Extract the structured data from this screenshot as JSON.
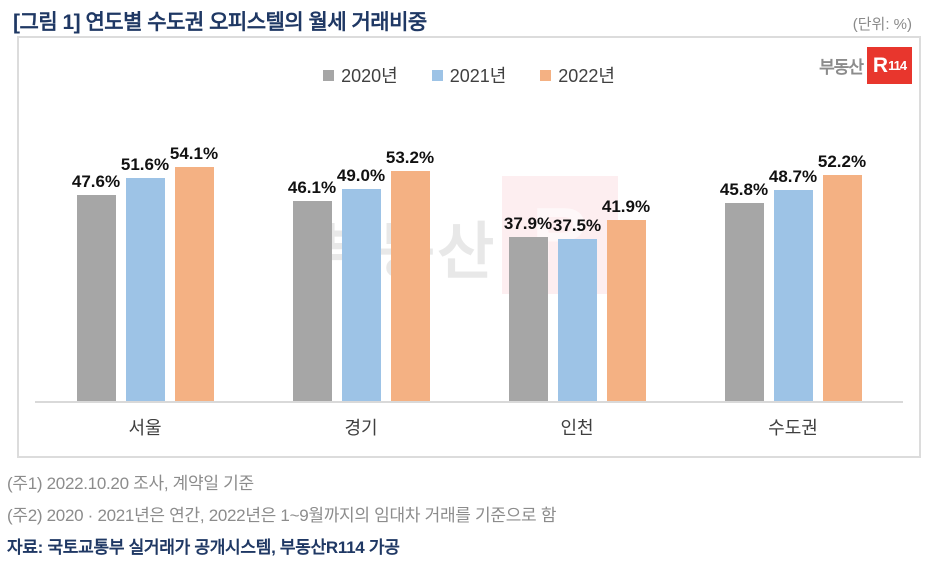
{
  "header": {
    "title": "[그림 1] 연도별 수도권 오피스텔의 월세 거래비중",
    "unit": "(단위: %)"
  },
  "logo": {
    "text": "부동산",
    "badge_r": "R",
    "badge_num": "114"
  },
  "watermark": {
    "text": "부동산",
    "badge": "R"
  },
  "chart_data": {
    "type": "bar",
    "title": "연도별 수도권 오피스텔의 월세 거래비중",
    "unit": "%",
    "categories": [
      "서울",
      "경기",
      "인천",
      "수도권"
    ],
    "series": [
      {
        "name": "2020년",
        "color": "#a6a6a6",
        "values": [
          47.6,
          46.1,
          37.9,
          45.8
        ]
      },
      {
        "name": "2021년",
        "color": "#9dc3e6",
        "values": [
          51.6,
          49.0,
          37.5,
          48.7
        ]
      },
      {
        "name": "2022년",
        "color": "#f4b183",
        "values": [
          54.1,
          53.2,
          41.9,
          52.2
        ]
      }
    ],
    "value_suffix": "%",
    "value_decimals": 1,
    "ylim": [
      0,
      80
    ],
    "grid": false,
    "yaxis_visible": false,
    "legend_position": "top-center",
    "data_labels": true
  },
  "footnotes": {
    "note1": "(주1) 2022.10.20 조사, 계약일 기준",
    "note2": "(주2) 2020 · 2021년은 연간, 2022년은 1~9월까지의 임대차 거래를 기준으로 함",
    "source": "자료: 국토교통부 실거래가 공개시스템, 부동산R114 가공"
  }
}
